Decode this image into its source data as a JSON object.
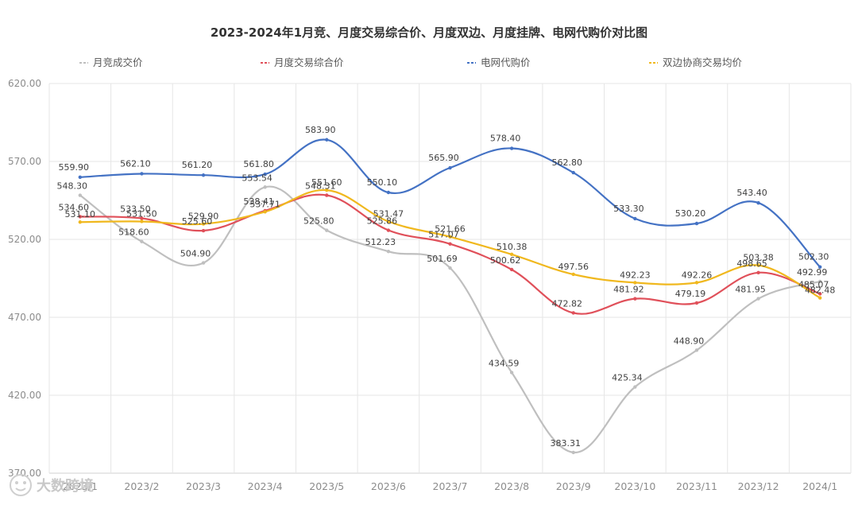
{
  "chart_data": {
    "type": "line",
    "title": "2023-2024年1月竞、月度交易综合价、月度双边、月度挂牌、电网代购价对比图",
    "categories": [
      "2023/1",
      "2023/2",
      "2023/3",
      "2023/4",
      "2023/5",
      "2023/6",
      "2023/7",
      "2023/8",
      "2023/9",
      "2023/10",
      "2023/11",
      "2023/12",
      "2024/1"
    ],
    "ylim": [
      370,
      620
    ],
    "yticks": [
      "620.00",
      "570.00",
      "520.00",
      "470.00",
      "420.00",
      "370.00"
    ],
    "ytick_values": [
      620,
      570,
      520,
      470,
      420,
      370
    ],
    "grid": true,
    "legend_position": "top",
    "series": [
      {
        "name": "月竞成交价",
        "color": "#bfbfbf",
        "values": [
          548.3,
          518.6,
          504.9,
          553.54,
          525.8,
          512.23,
          501.69,
          434.59,
          383.31,
          425.34,
          448.9,
          481.95,
          492.99
        ],
        "labels": [
          "548.30",
          "518.60",
          "504.90",
          "553.54",
          "525.80",
          "512.23",
          "501.69",
          "434.59",
          "383.31",
          "425.34",
          "448.90",
          "481.95",
          "492.99"
        ]
      },
      {
        "name": "月度交易综合价",
        "color": "#e0505a",
        "values": [
          534.6,
          533.5,
          525.6,
          538.41,
          548.31,
          525.86,
          517.07,
          500.62,
          472.82,
          481.92,
          479.19,
          498.65,
          485.07
        ],
        "labels": [
          "534.60",
          "533.50",
          "525.60",
          "538.41",
          "548.31",
          "525.86",
          "517.07",
          "500.62",
          "472.82",
          "481.92",
          "479.19",
          "498.65",
          "485.07"
        ]
      },
      {
        "name": "电网代购价",
        "color": "#4472c4",
        "values": [
          559.9,
          562.1,
          561.2,
          561.8,
          583.9,
          550.1,
          565.9,
          578.4,
          562.8,
          533.3,
          530.2,
          543.4,
          502.3
        ],
        "labels": [
          "559.90",
          "562.10",
          "561.20",
          "561.80",
          "583.90",
          "550.10",
          "565.90",
          "578.40",
          "562.80",
          "533.30",
          "530.20",
          "543.40",
          "502.30"
        ]
      },
      {
        "name": "双边协商交易均价",
        "color": "#f0b81e",
        "values": [
          531.1,
          531.5,
          529.9,
          537.71,
          551.6,
          531.47,
          521.66,
          510.38,
          497.56,
          492.23,
          492.26,
          503.38,
          482.48
        ],
        "labels": [
          "531.10",
          "531.50",
          "529.90",
          "537.71",
          "551.60",
          "531.47",
          "521.66",
          "510.38",
          "497.56",
          "492.23",
          "492.26",
          "503.38",
          "482.48"
        ]
      }
    ]
  },
  "watermark": {
    "text": "大数跨境",
    "icon": "watermark-logo-icon"
  }
}
